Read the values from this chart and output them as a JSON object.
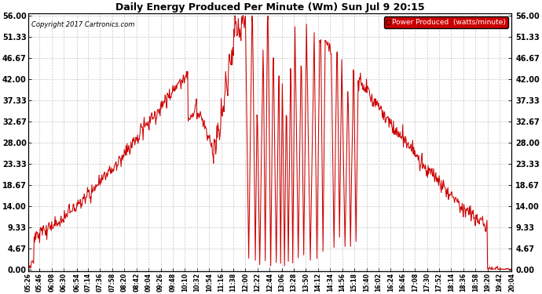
{
  "title": "Daily Energy Produced Per Minute (Wm) Sun Jul 9 20:15",
  "copyright": "Copyright 2017 Cartronics.com",
  "legend_label": "Power Produced  (watts/minute)",
  "legend_bg": "#cc0000",
  "legend_text_color": "#ffffff",
  "line_color": "#cc0000",
  "bg_color": "#ffffff",
  "grid_color": "#c8c8c8",
  "yticks": [
    0.0,
    4.67,
    9.33,
    14.0,
    18.67,
    23.33,
    28.0,
    32.67,
    37.33,
    42.0,
    46.67,
    51.33,
    56.0
  ],
  "ymax": 56.0,
  "ymin": 0.0,
  "xtick_labels": [
    "05:26",
    "05:46",
    "06:08",
    "06:30",
    "06:54",
    "07:14",
    "07:36",
    "07:58",
    "08:20",
    "08:42",
    "09:04",
    "09:26",
    "09:48",
    "10:10",
    "10:32",
    "10:54",
    "11:16",
    "11:38",
    "12:00",
    "12:22",
    "12:44",
    "13:06",
    "13:28",
    "13:50",
    "14:12",
    "14:34",
    "14:56",
    "15:18",
    "15:40",
    "16:02",
    "16:24",
    "16:46",
    "17:08",
    "17:30",
    "17:52",
    "18:14",
    "18:36",
    "18:58",
    "19:20",
    "19:42",
    "20:04"
  ]
}
